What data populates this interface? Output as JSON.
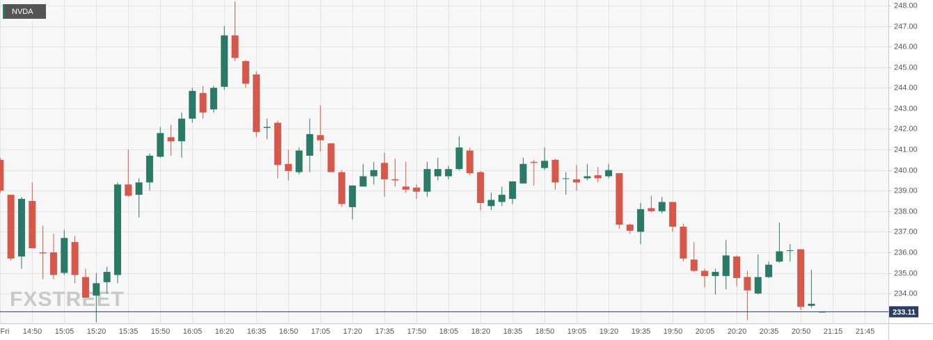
{
  "chart_data": {
    "type": "candlestick",
    "title": "NVDA",
    "watermark": "FXSTREET",
    "categories": [
      "Fri",
      null,
      null,
      "14:50",
      null,
      null,
      "15:05",
      null,
      null,
      "15:20",
      null,
      null,
      "15:35",
      null,
      null,
      "15:50",
      null,
      null,
      "16:05",
      null,
      null,
      "16:20",
      null,
      null,
      "16:35",
      null,
      null,
      "16:50",
      null,
      null,
      "17:05",
      null,
      null,
      "17:20",
      null,
      null,
      "17:35",
      null,
      null,
      "17:50",
      null,
      null,
      "18:05",
      null,
      null,
      "18:20",
      null,
      null,
      "18:35",
      null,
      null,
      "18:50",
      null,
      null,
      "19:05",
      null,
      null,
      "19:20",
      null,
      null,
      "19:35",
      null,
      null,
      "19:50",
      null,
      null,
      "20:05",
      null,
      null,
      "20:20",
      null,
      null,
      "20:35",
      null,
      null,
      "20:50",
      null,
      null,
      "21:15",
      null,
      null,
      "21:45",
      null,
      null
    ],
    "open": [
      240.5,
      238.8,
      235.8,
      238.5,
      236.0,
      236.0,
      235.0,
      236.5,
      234.8,
      233.9,
      234.55,
      234.9,
      239.3,
      238.8,
      239.4,
      240.65,
      241.6,
      241.4,
      242.5,
      243.75,
      242.95,
      244.05,
      246.55,
      245.3,
      244.65,
      242.05,
      242.3,
      240.3,
      239.9,
      240.7,
      241.7,
      241.3,
      239.9,
      238.2,
      239.2,
      239.7,
      240.35,
      239.55,
      239.2,
      239.15,
      238.95,
      239.7,
      239.7,
      240.05,
      240.95,
      239.9,
      238.25,
      238.45,
      238.6,
      239.35,
      240.4,
      240.1,
      240.5,
      239.6,
      239.55,
      239.6,
      239.75,
      239.7,
      239.85,
      237.35,
      237.0,
      238.15,
      238.0,
      238.45,
      237.25,
      235.65,
      235.1,
      234.85,
      234.85,
      235.8,
      234.8,
      234.0,
      234.8,
      235.55,
      236.1,
      236.15,
      233.4,
      233.11,
      null,
      null,
      null,
      null,
      null,
      null
    ],
    "high": [
      240.6,
      238.8,
      238.7,
      239.4,
      237.3,
      236.9,
      237.1,
      236.8,
      235.2,
      235.0,
      235.3,
      239.4,
      241.0,
      239.6,
      240.8,
      242.1,
      242.2,
      242.8,
      244.0,
      244.1,
      244.1,
      247.0,
      248.2,
      245.35,
      244.8,
      242.5,
      242.4,
      241.0,
      241.1,
      242.5,
      243.15,
      241.3,
      240.0,
      239.25,
      240.3,
      240.4,
      240.85,
      240.55,
      240.4,
      239.3,
      240.4,
      240.6,
      240.2,
      241.65,
      241.1,
      239.95,
      238.9,
      239.2,
      239.45,
      240.6,
      240.5,
      241.1,
      240.55,
      239.9,
      240.25,
      240.3,
      240.15,
      240.3,
      239.85,
      237.4,
      238.4,
      238.75,
      238.7,
      238.45,
      237.4,
      236.5,
      235.2,
      235.2,
      236.6,
      235.85,
      235.1,
      235.9,
      235.55,
      237.45,
      236.4,
      236.15,
      235.15,
      233.11,
      null,
      null,
      null,
      null,
      null,
      null
    ],
    "low": [
      238.9,
      235.6,
      235.2,
      236.2,
      234.7,
      234.7,
      234.9,
      234.5,
      233.8,
      232.6,
      234.0,
      234.5,
      238.7,
      237.7,
      239.0,
      240.6,
      240.7,
      240.6,
      242.3,
      242.5,
      242.8,
      243.9,
      245.3,
      244.0,
      241.6,
      241.5,
      239.6,
      239.5,
      239.8,
      239.9,
      240.9,
      239.9,
      238.2,
      237.6,
      239.2,
      239.3,
      238.7,
      239.2,
      238.9,
      238.6,
      238.7,
      239.5,
      239.55,
      240.0,
      239.75,
      238.05,
      238.05,
      238.25,
      238.35,
      239.35,
      239.25,
      240.0,
      239.05,
      238.8,
      239.0,
      239.5,
      239.4,
      239.6,
      237.15,
      236.9,
      236.4,
      237.95,
      237.9,
      237.0,
      235.55,
      235.05,
      234.3,
      233.95,
      234.2,
      234.35,
      232.7,
      233.95,
      234.75,
      235.5,
      235.55,
      233.2,
      233.3,
      233.11,
      null,
      null,
      null,
      null,
      null,
      null
    ],
    "close": [
      239.0,
      235.7,
      238.6,
      236.2,
      235.95,
      234.9,
      236.7,
      234.9,
      233.8,
      234.5,
      235.05,
      239.3,
      238.75,
      239.4,
      240.7,
      241.8,
      241.4,
      242.5,
      243.85,
      242.8,
      244.0,
      246.55,
      245.45,
      244.2,
      241.85,
      242.1,
      240.25,
      239.95,
      240.95,
      241.75,
      241.45,
      239.9,
      238.35,
      239.25,
      239.7,
      240.0,
      239.55,
      239.5,
      239.05,
      238.95,
      240.05,
      240.05,
      240.05,
      241.1,
      239.85,
      238.4,
      238.55,
      238.8,
      239.45,
      240.3,
      240.35,
      240.45,
      239.4,
      239.6,
      239.4,
      239.7,
      239.6,
      240.0,
      237.35,
      237.05,
      238.1,
      238.0,
      238.45,
      237.25,
      235.7,
      235.1,
      234.85,
      235.05,
      235.85,
      234.75,
      234.15,
      234.8,
      235.4,
      236.05,
      236.1,
      233.35,
      233.5,
      233.11,
      null,
      null,
      null,
      null,
      null,
      null
    ],
    "up_color": "#2b7a67",
    "down_color": "#d6584b",
    "last_price": 233.11,
    "ylim": [
      232.55,
      248.27
    ],
    "yticks": [
      {
        "value": 234,
        "label": "234.00"
      },
      {
        "value": 235,
        "label": "235.00"
      },
      {
        "value": 236,
        "label": "236.00"
      },
      {
        "value": 237,
        "label": "237.00"
      },
      {
        "value": 238,
        "label": "238.00"
      },
      {
        "value": 239,
        "label": "239.00"
      },
      {
        "value": 240,
        "label": "240.00"
      },
      {
        "value": 241,
        "label": "241.00"
      },
      {
        "value": 242,
        "label": "242.00"
      },
      {
        "value": 243,
        "label": "243.00"
      },
      {
        "value": 244,
        "label": "244.00"
      },
      {
        "value": 245,
        "label": "245.00"
      },
      {
        "value": 246,
        "label": "246.00"
      },
      {
        "value": 247,
        "label": "247.00"
      },
      {
        "value": 248,
        "label": "248.00"
      }
    ],
    "grid": true
  }
}
